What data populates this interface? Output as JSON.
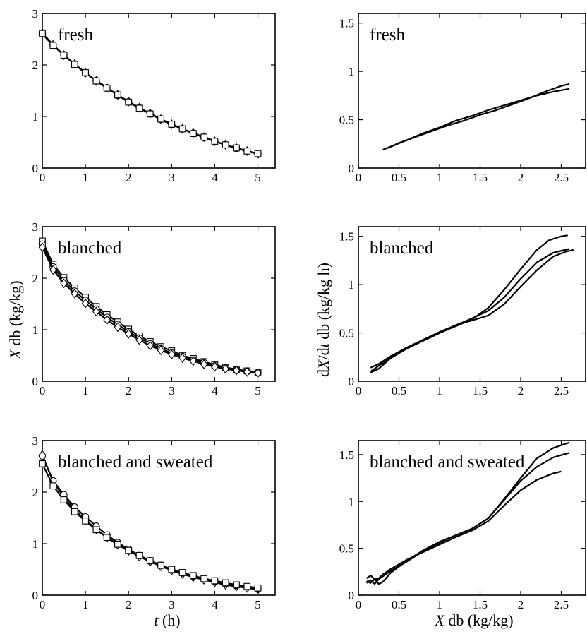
{
  "figure": {
    "left_ylabel": {
      "italic": "X",
      "rest": " db (kg/kg)"
    },
    "right_ylabel": {
      "a": "d",
      "b": "X",
      "c": "/d",
      "d": "t",
      "e": " db (kg/kg h)"
    },
    "left_xlabel": {
      "italic": "t",
      "rest": " (h)"
    },
    "right_xlabel": {
      "italic": "X",
      "rest": " db (kg/kg)"
    }
  },
  "chart_data": [
    {
      "type": "line",
      "panel": "left-1",
      "title": "fresh",
      "xlim": [
        0,
        5.4
      ],
      "ylim": [
        0,
        3
      ],
      "xticks": [
        0,
        1,
        2,
        3,
        4,
        5
      ],
      "yticks": [
        0,
        1,
        2,
        3
      ],
      "show_xtick_labels": true,
      "x": [
        0,
        0.25,
        0.5,
        0.75,
        1,
        1.25,
        1.5,
        1.75,
        2,
        2.25,
        2.5,
        2.75,
        3,
        3.25,
        3.5,
        3.75,
        4,
        4.25,
        4.5,
        4.75,
        5
      ],
      "series": [
        {
          "marker": "diamond",
          "values": [
            2.62,
            2.39,
            2.19,
            2.02,
            1.85,
            1.69,
            1.55,
            1.42,
            1.29,
            1.17,
            1.06,
            0.95,
            0.85,
            0.76,
            0.68,
            0.6,
            0.52,
            0.45,
            0.39,
            0.33,
            0.27
          ]
        },
        {
          "marker": "circle",
          "values": [
            2.6,
            2.38,
            2.2,
            2.01,
            1.84,
            1.7,
            1.56,
            1.41,
            1.28,
            1.17,
            1.05,
            0.94,
            0.84,
            0.76,
            0.67,
            0.59,
            0.52,
            0.45,
            0.38,
            0.33,
            0.28
          ]
        },
        {
          "marker": "square",
          "values": [
            2.61,
            2.38,
            2.19,
            2.01,
            1.85,
            1.69,
            1.55,
            1.42,
            1.28,
            1.16,
            1.05,
            0.95,
            0.85,
            0.76,
            0.67,
            0.6,
            0.52,
            0.45,
            0.39,
            0.33,
            0.28
          ]
        }
      ]
    },
    {
      "type": "line",
      "panel": "right-1",
      "title": "fresh",
      "xlim": [
        0,
        2.8
      ],
      "ylim": [
        0,
        1.6
      ],
      "xticks": [
        0,
        0.5,
        1,
        1.5,
        2,
        2.5
      ],
      "yticks": [
        0,
        0.5,
        1,
        1.5
      ],
      "show_xtick_labels": true,
      "series": [
        {
          "x": [
            0.3,
            0.4,
            0.5,
            0.7,
            0.9,
            1.1,
            1.3,
            1.5,
            1.7,
            1.9,
            2.1,
            2.3,
            2.5,
            2.6
          ],
          "values": [
            0.19,
            0.22,
            0.26,
            0.32,
            0.38,
            0.44,
            0.49,
            0.55,
            0.6,
            0.66,
            0.72,
            0.79,
            0.85,
            0.87
          ]
        },
        {
          "x": [
            0.33,
            0.45,
            0.6,
            0.8,
            1.0,
            1.2,
            1.4,
            1.6,
            1.8,
            2.0,
            2.2,
            2.4,
            2.6
          ],
          "values": [
            0.2,
            0.24,
            0.29,
            0.36,
            0.42,
            0.49,
            0.54,
            0.6,
            0.65,
            0.7,
            0.75,
            0.79,
            0.82
          ]
        }
      ]
    },
    {
      "type": "line",
      "panel": "left-2",
      "title": "blanched",
      "xlim": [
        0,
        5.4
      ],
      "ylim": [
        0,
        3
      ],
      "xticks": [
        0,
        1,
        2,
        3,
        4,
        5
      ],
      "yticks": [
        0,
        1,
        2,
        3
      ],
      "show_xtick_labels": true,
      "x": [
        0,
        0.25,
        0.5,
        0.75,
        1,
        1.25,
        1.5,
        1.75,
        2,
        2.25,
        2.5,
        2.75,
        3,
        3.25,
        3.5,
        3.75,
        4,
        4.25,
        4.5,
        4.75,
        5
      ],
      "series": [
        {
          "marker": "square",
          "values": [
            2.72,
            2.27,
            2.01,
            1.81,
            1.63,
            1.45,
            1.29,
            1.15,
            1.01,
            0.88,
            0.77,
            0.67,
            0.59,
            0.5,
            0.44,
            0.38,
            0.32,
            0.27,
            0.23,
            0.2,
            0.18
          ]
        },
        {
          "marker": "circle",
          "values": [
            2.66,
            2.22,
            1.95,
            1.75,
            1.57,
            1.4,
            1.24,
            1.1,
            0.96,
            0.84,
            0.73,
            0.63,
            0.55,
            0.48,
            0.41,
            0.36,
            0.3,
            0.26,
            0.22,
            0.19,
            0.17
          ]
        },
        {
          "marker": "diamond",
          "values": [
            2.6,
            2.16,
            1.9,
            1.7,
            1.51,
            1.35,
            1.19,
            1.05,
            0.92,
            0.8,
            0.69,
            0.6,
            0.52,
            0.45,
            0.39,
            0.33,
            0.28,
            0.24,
            0.21,
            0.18,
            0.16
          ]
        }
      ]
    },
    {
      "type": "line",
      "panel": "right-2",
      "title": "blanched",
      "xlim": [
        0,
        2.8
      ],
      "ylim": [
        0,
        1.6
      ],
      "xticks": [
        0,
        0.5,
        1,
        1.5,
        2,
        2.5
      ],
      "yticks": [
        0,
        0.5,
        1,
        1.5
      ],
      "show_xtick_labels": true,
      "series": [
        {
          "x": [
            0.15,
            0.25,
            0.4,
            0.6,
            0.8,
            1.0,
            1.2,
            1.4,
            1.6,
            1.8,
            2.0,
            2.2,
            2.35,
            2.5,
            2.58
          ],
          "values": [
            0.14,
            0.18,
            0.26,
            0.35,
            0.42,
            0.5,
            0.57,
            0.64,
            0.76,
            0.95,
            1.16,
            1.36,
            1.46,
            1.5,
            1.51
          ]
        },
        {
          "x": [
            0.15,
            0.25,
            0.4,
            0.6,
            0.8,
            1.0,
            1.2,
            1.4,
            1.6,
            1.8,
            2.0,
            2.2,
            2.4,
            2.6
          ],
          "values": [
            0.1,
            0.16,
            0.25,
            0.35,
            0.43,
            0.51,
            0.58,
            0.65,
            0.73,
            0.87,
            1.06,
            1.23,
            1.33,
            1.37
          ]
        },
        {
          "x": [
            0.15,
            0.25,
            0.4,
            0.6,
            0.8,
            1.0,
            1.2,
            1.4,
            1.6,
            1.8,
            2.0,
            2.2,
            2.4,
            2.55,
            2.65
          ],
          "values": [
            0.09,
            0.13,
            0.24,
            0.34,
            0.42,
            0.5,
            0.58,
            0.63,
            0.68,
            0.8,
            0.98,
            1.15,
            1.29,
            1.34,
            1.36
          ]
        }
      ]
    },
    {
      "type": "line",
      "panel": "left-3",
      "title": "blanched and sweated",
      "xlim": [
        0,
        5.4
      ],
      "ylim": [
        0,
        3
      ],
      "xticks": [
        0,
        1,
        2,
        3,
        4,
        5
      ],
      "yticks": [
        0,
        1,
        2,
        3
      ],
      "show_xtick_labels": true,
      "x": [
        0,
        0.25,
        0.5,
        0.75,
        1,
        1.25,
        1.5,
        1.75,
        2,
        2.25,
        2.5,
        2.75,
        3,
        3.25,
        3.5,
        3.75,
        4,
        4.25,
        4.5,
        4.75,
        5
      ],
      "series": [
        {
          "marker": "diamond",
          "values": [
            2.72,
            2.2,
            1.9,
            1.66,
            1.46,
            1.28,
            1.12,
            0.98,
            0.86,
            0.75,
            0.65,
            0.56,
            0.48,
            0.41,
            0.35,
            0.3,
            0.25,
            0.2,
            0.17,
            0.14,
            0.11
          ]
        },
        {
          "marker": "circle",
          "values": [
            2.7,
            2.22,
            1.95,
            1.71,
            1.52,
            1.34,
            1.17,
            1.02,
            0.89,
            0.77,
            0.67,
            0.58,
            0.5,
            0.43,
            0.37,
            0.32,
            0.27,
            0.23,
            0.19,
            0.16,
            0.13
          ]
        },
        {
          "marker": "square",
          "values": [
            2.55,
            2.12,
            1.85,
            1.62,
            1.44,
            1.27,
            1.12,
            0.99,
            0.87,
            0.77,
            0.67,
            0.58,
            0.5,
            0.44,
            0.38,
            0.32,
            0.28,
            0.24,
            0.2,
            0.17,
            0.14
          ]
        }
      ]
    },
    {
      "type": "line",
      "panel": "right-3",
      "title": "blanched and sweated",
      "xlim": [
        0,
        2.8
      ],
      "ylim": [
        0,
        1.65
      ],
      "xticks": [
        0,
        0.5,
        1,
        1.5,
        2,
        2.5
      ],
      "yticks": [
        0,
        0.5,
        1,
        1.5
      ],
      "show_xtick_labels": true,
      "series": [
        {
          "x": [
            0.1,
            0.15,
            0.2,
            0.25,
            0.3,
            0.4,
            0.6,
            0.8,
            1.0,
            1.2,
            1.4,
            1.6,
            1.8,
            2.0,
            2.2,
            2.4,
            2.5
          ],
          "values": [
            0.18,
            0.21,
            0.17,
            0.18,
            0.22,
            0.28,
            0.38,
            0.46,
            0.54,
            0.62,
            0.69,
            0.79,
            0.96,
            1.12,
            1.23,
            1.3,
            1.32
          ]
        },
        {
          "x": [
            0.1,
            0.15,
            0.2,
            0.25,
            0.3,
            0.4,
            0.6,
            0.8,
            1.0,
            1.2,
            1.4,
            1.6,
            1.8,
            2.0,
            2.2,
            2.4,
            2.6
          ],
          "values": [
            0.13,
            0.16,
            0.12,
            0.17,
            0.2,
            0.26,
            0.36,
            0.47,
            0.56,
            0.64,
            0.71,
            0.82,
            1.02,
            1.22,
            1.37,
            1.47,
            1.52
          ]
        },
        {
          "x": [
            0.1,
            0.15,
            0.2,
            0.25,
            0.3,
            0.4,
            0.6,
            0.8,
            1.0,
            1.2,
            1.4,
            1.6,
            1.8,
            2.0,
            2.2,
            2.4,
            2.6
          ],
          "values": [
            0.15,
            0.13,
            0.17,
            0.12,
            0.14,
            0.24,
            0.37,
            0.48,
            0.57,
            0.64,
            0.71,
            0.82,
            1.03,
            1.25,
            1.46,
            1.57,
            1.63
          ]
        }
      ]
    }
  ]
}
